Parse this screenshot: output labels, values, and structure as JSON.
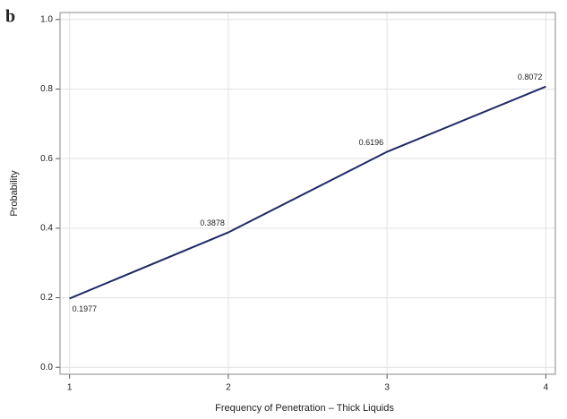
{
  "chart_data": {
    "type": "line",
    "panel_label": "b",
    "xlabel": "Frequency of Penetration – Thick Liquids",
    "ylabel": "Probability",
    "x": [
      1,
      2,
      3,
      4
    ],
    "series": [
      {
        "name": "Probability",
        "color": "#1f2a66",
        "values": [
          0.1977,
          0.3878,
          0.6196,
          0.8072
        ]
      }
    ],
    "xlim": [
      0.94,
      4.06
    ],
    "xticks": [
      1,
      2,
      3,
      4
    ],
    "ylim": [
      -0.02,
      1.02
    ],
    "yticks": [
      {
        "value": 0,
        "label": "0.0"
      },
      0.2,
      0.4,
      0.6,
      0.8,
      {
        "value": 1,
        "label": "1.0"
      }
    ],
    "grid": true
  }
}
